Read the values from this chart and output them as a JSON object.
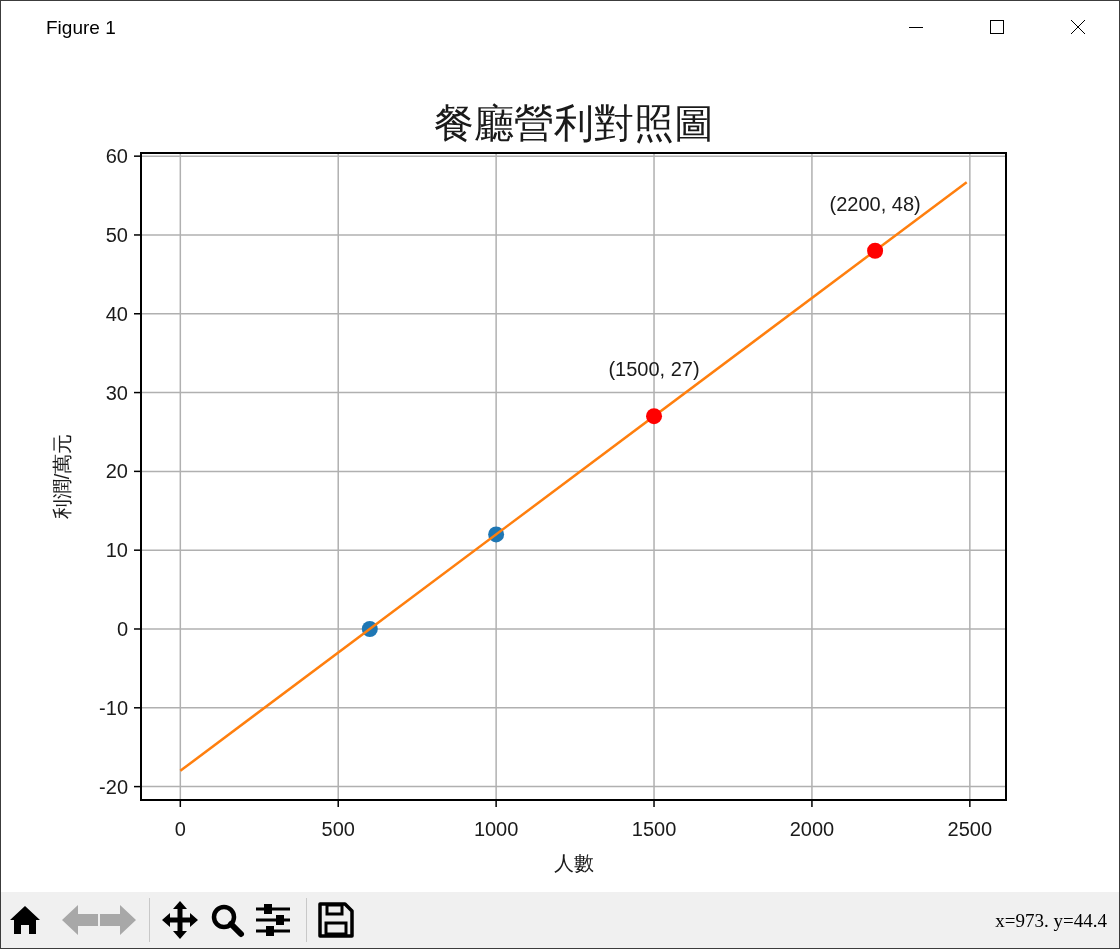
{
  "chart_data": {
    "type": "scatter",
    "title": "餐廳營利對照圖",
    "xlabel": "人數",
    "ylabel": "利潤/萬元",
    "xlim": [
      -124.5,
      2614.5
    ],
    "ylim": [
      -21.7,
      60.4
    ],
    "xticks": [
      0,
      500,
      1000,
      1500,
      2000,
      2500
    ],
    "yticks": [
      {
        "value": -20,
        "label": "-20"
      },
      {
        "value": -10,
        "label": "-10"
      },
      0,
      10,
      20,
      30,
      40,
      50,
      60
    ],
    "grid": true,
    "marker": "circle",
    "series": [
      {
        "color": "#1f77b4",
        "x": [
          600,
          1000
        ],
        "values": [
          0,
          12
        ]
      },
      {
        "type": "line",
        "color": "#ff7f0e",
        "marker": "none",
        "x": [
          0,
          2490
        ],
        "values": [
          -18,
          56.7
        ]
      },
      {
        "color": "#ff0000",
        "x": [
          1500,
          2200
        ],
        "values": [
          27,
          48
        ]
      }
    ],
    "annotations": [
      {
        "text": "(1500, 27)",
        "x": 1500,
        "y": 27
      },
      {
        "text": "(2200, 48)",
        "x": 2200,
        "y": 48
      },
      "Figure 1",
      "x=973. y=44.4"
    ]
  }
}
